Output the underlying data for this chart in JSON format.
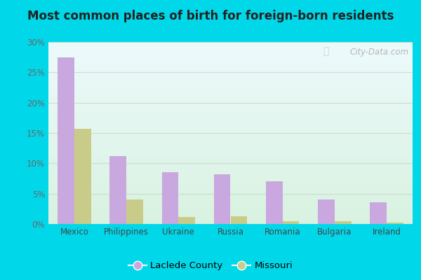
{
  "title": "Most common places of birth for foreign-born residents",
  "categories": [
    "Mexico",
    "Philippines",
    "Ukraine",
    "Russia",
    "Romania",
    "Bulgaria",
    "Ireland"
  ],
  "laclede_values": [
    27.5,
    11.2,
    8.5,
    8.2,
    7.0,
    4.0,
    3.6
  ],
  "missouri_values": [
    15.7,
    4.0,
    1.1,
    1.3,
    0.5,
    0.5,
    0.2
  ],
  "laclede_color": "#c9a8e0",
  "missouri_color": "#c8cc88",
  "ylim": [
    0,
    30
  ],
  "yticks": [
    0,
    5,
    10,
    15,
    20,
    25,
    30
  ],
  "ytick_labels": [
    "0%",
    "5%",
    "10%",
    "15%",
    "20%",
    "25%",
    "30%"
  ],
  "legend_labels": [
    "Laclede County",
    "Missouri"
  ],
  "bg_outer": "#00d8ea",
  "watermark": "City-Data.com",
  "bar_width": 0.32
}
